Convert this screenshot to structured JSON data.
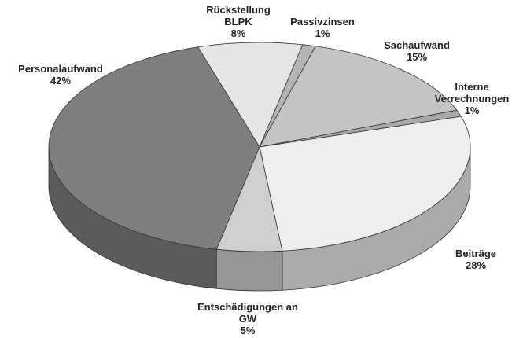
{
  "chart_data": {
    "type": "pie3d",
    "categories": [
      "Rückstellung BLPK",
      "Passivzinsen",
      "Sachaufwand",
      "Interne Verrechnungen",
      "Beiträge",
      "Entschädigungen an GW",
      "Personalaufwand"
    ],
    "values": [
      8,
      1,
      15,
      1,
      28,
      5,
      42
    ],
    "value_labels": [
      "8%",
      "1%",
      "15%",
      "1%",
      "28%",
      "5%",
      "42%"
    ],
    "colors": [
      "#e6e6e6",
      "#b4b4b4",
      "#c4c4c4",
      "#a8a8a8",
      "#eeeeee",
      "#cfcfcf",
      "#7f7f7f"
    ]
  }
}
